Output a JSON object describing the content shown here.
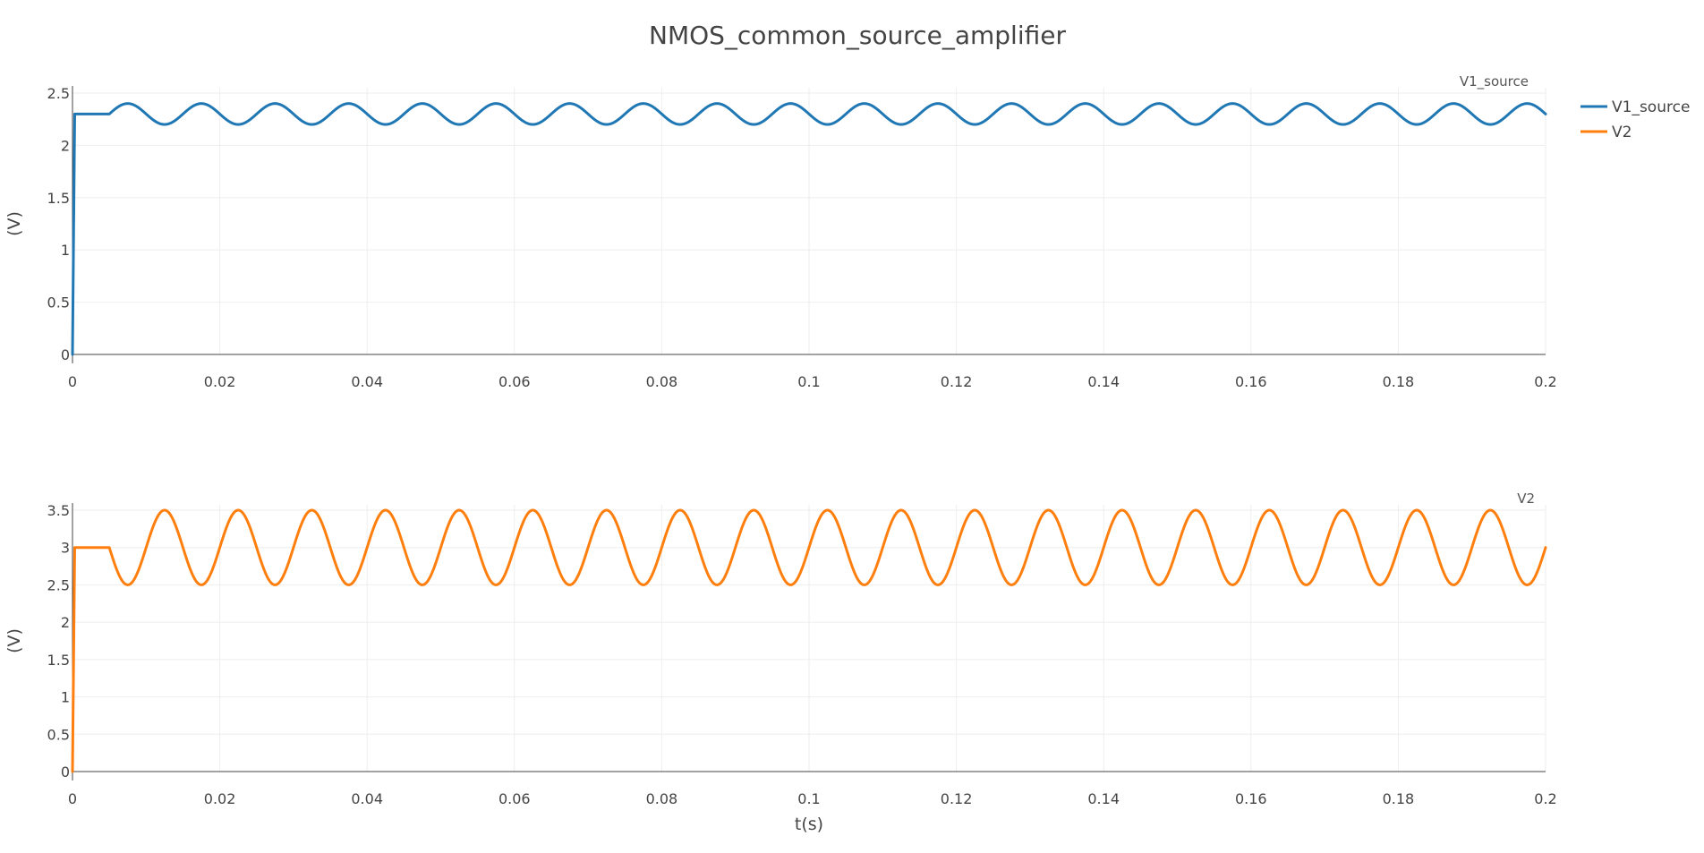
{
  "chart_data": {
    "type": "line",
    "title": "NMOS_common_source_amplifier",
    "legend": {
      "placement": "right",
      "entries": [
        {
          "name": "V1_source",
          "color": "#1f77b4"
        },
        {
          "name": "V2",
          "color": "#ff7f0e"
        }
      ]
    },
    "subplots": [
      {
        "subtitle": "V1_source",
        "series_name": "V1_source",
        "color": "#1f77b4",
        "ylabel": "(V)",
        "xlabel": "",
        "xlim": [
          0,
          0.2
        ],
        "ylim": [
          0,
          2.5
        ],
        "xticks": [
          "0",
          "0.02",
          "0.04",
          "0.06",
          "0.08",
          "0.1",
          "0.12",
          "0.14",
          "0.16",
          "0.18",
          "0.2"
        ],
        "yticks": [
          "0",
          "0.5",
          "1",
          "1.5",
          "2",
          "2.5"
        ],
        "grid": true,
        "signal": {
          "dc": 2.3,
          "amplitude": 0.1,
          "frequency_hz": 100,
          "startup_level": 2.3,
          "startup_end_s": 0.005
        }
      },
      {
        "subtitle": "V2",
        "series_name": "V2",
        "color": "#ff7f0e",
        "ylabel": "(V)",
        "xlabel": "t(s)",
        "xlim": [
          0,
          0.2
        ],
        "ylim": [
          0,
          3.5
        ],
        "xticks": [
          "0",
          "0.02",
          "0.04",
          "0.06",
          "0.08",
          "0.1",
          "0.12",
          "0.14",
          "0.16",
          "0.18",
          "0.2"
        ],
        "yticks": [
          "0",
          "0.5",
          "1",
          "1.5",
          "2",
          "2.5",
          "3",
          "3.5"
        ],
        "grid": true,
        "signal": {
          "dc": 3.0,
          "amplitude": -0.5,
          "frequency_hz": 100,
          "startup_level": 3.0,
          "startup_end_s": 0.005
        }
      }
    ]
  }
}
